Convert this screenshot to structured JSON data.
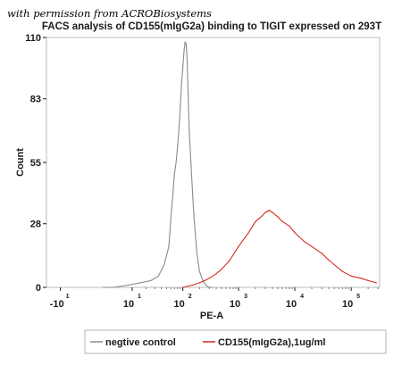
{
  "watermark": "with permission from ACROBiosystems",
  "chart_data": {
    "type": "area",
    "title": "FACS analysis of CD155(mIgG2a) binding to TIGIT expressed on 293T",
    "xlabel": "PE-A",
    "ylabel": "Count",
    "ylim": [
      0,
      110
    ],
    "y_ticks": [
      {
        "value": 0,
        "label": "0"
      },
      {
        "value": 28,
        "label": "28"
      },
      {
        "value": 55,
        "label": "55"
      },
      {
        "value": 83,
        "label": "83"
      },
      {
        "value": 110,
        "label": "110"
      }
    ],
    "x_ticks": [
      {
        "value": -10,
        "base": "-10",
        "exp": "1"
      },
      {
        "value": 10,
        "base": "10",
        "exp": "1"
      },
      {
        "value": 100,
        "base": "10",
        "exp": "2"
      },
      {
        "value": 1000,
        "base": "10",
        "exp": "3"
      },
      {
        "value": 10000,
        "base": "10",
        "exp": "4"
      },
      {
        "value": 100000,
        "base": "10",
        "exp": "5"
      }
    ],
    "legend_position": "bottom",
    "series": [
      {
        "name": "negtive control",
        "color": "#8a8a8a",
        "x": [
          1,
          3,
          8,
          15,
          25,
          35,
          45,
          55,
          60,
          65,
          70,
          75,
          80,
          85,
          90,
          95,
          100,
          105,
          110,
          115,
          120,
          125,
          130,
          140,
          150,
          160,
          180,
          200,
          230,
          260,
          300,
          350
        ],
        "y": [
          0,
          0,
          1,
          2,
          3,
          5,
          10,
          18,
          30,
          40,
          50,
          55,
          62,
          70,
          80,
          90,
          97,
          104,
          108,
          107,
          100,
          85,
          70,
          55,
          42,
          30,
          15,
          7,
          3,
          1,
          0,
          0
        ]
      },
      {
        "name": "CD155(mIgG2a),1ug/ml",
        "color": "#d42a1e",
        "x": [
          100,
          150,
          200,
          250,
          300,
          400,
          500,
          700,
          1000,
          1500,
          2000,
          2500,
          3000,
          3500,
          4000,
          5000,
          6000,
          8000,
          10000,
          15000,
          20000,
          30000,
          40000,
          50000,
          70000,
          100000,
          150000,
          200000,
          280000
        ],
        "y": [
          0,
          1,
          2,
          3,
          4,
          6,
          8,
          12,
          18,
          24,
          29,
          31,
          33,
          34,
          33,
          31,
          29,
          27,
          24,
          20,
          18,
          15,
          12,
          10,
          7,
          5,
          4,
          3,
          2
        ]
      }
    ]
  }
}
